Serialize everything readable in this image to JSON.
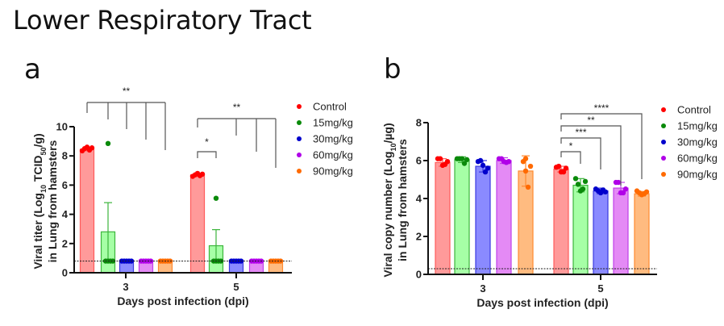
{
  "title": "Lower Respiratory Tract",
  "colors": {
    "Control": {
      "dot": "#ff0000",
      "fill": "#ff9a9a",
      "stroke": "#ff5a5a"
    },
    "15mg/kg": {
      "dot": "#0a8a0a",
      "fill": "#a6ffa6",
      "stroke": "#3cb53c"
    },
    "30mg/kg": {
      "dot": "#0000cc",
      "fill": "#8a8aff",
      "stroke": "#3a3ae0"
    },
    "60mg/kg": {
      "dot": "#b000e8",
      "fill": "#e48af5",
      "stroke": "#c040e8"
    },
    "90mg/kg": {
      "dot": "#ff6a00",
      "fill": "#ffbb80",
      "stroke": "#ff8a30"
    }
  },
  "chart_data": [
    {
      "panel": "a",
      "type": "bar",
      "title": "",
      "xlabel": "Days post infection (dpi)",
      "ylabel_line1": "Viral titer (Log",
      "ylabel_sub": "10",
      "ylabel_mid": " TCID",
      "ylabel_sub2": "50",
      "ylabel_end": "/g)",
      "ylabel_line2": "in Lung from hamsters",
      "ylim": [
        0,
        10
      ],
      "yticks": [
        "0",
        "2",
        "4",
        "6",
        "8",
        "10"
      ],
      "ytick_values": [
        0,
        2,
        4,
        6,
        8,
        10
      ],
      "categories": [
        "3",
        "5"
      ],
      "detection_limit": 0.8,
      "legend": [
        "Control",
        "15mg/kg",
        "30mg/kg",
        "60mg/kg",
        "90mg/kg"
      ],
      "legend_position": "right",
      "series": [
        {
          "name": "Control",
          "values": [
            8.45,
            6.7
          ],
          "err": [
            0.1,
            0.1
          ],
          "points": [
            [
              8.35,
              8.5,
              8.6,
              8.4,
              8.55
            ],
            [
              6.6,
              6.7,
              6.8,
              6.65,
              6.75
            ]
          ]
        },
        {
          "name": "15mg/kg",
          "values": [
            2.8,
            1.85
          ],
          "err": [
            2.0,
            1.1
          ],
          "points": [
            [
              8.85,
              0.8,
              0.8,
              0.8,
              0.8
            ],
            [
              5.1,
              0.8,
              0.8,
              0.8,
              0.8
            ]
          ]
        },
        {
          "name": "30mg/kg",
          "values": [
            0.8,
            0.8
          ],
          "err": [
            0,
            0
          ],
          "points": [
            [
              0.8,
              0.8,
              0.8,
              0.8,
              0.8
            ],
            [
              0.8,
              0.8,
              0.8,
              0.8,
              0.8
            ]
          ]
        },
        {
          "name": "60mg/kg",
          "values": [
            0.8,
            0.8
          ],
          "err": [
            0,
            0
          ],
          "points": [
            [
              0.8,
              0.8,
              0.8,
              0.8,
              0.8
            ],
            [
              0.8,
              0.8,
              0.8,
              0.8,
              0.8
            ]
          ]
        },
        {
          "name": "90mg/kg",
          "values": [
            0.8,
            0.8
          ],
          "err": [
            0,
            0
          ],
          "points": [
            [
              0.8,
              0.8,
              0.8,
              0.8,
              0.8
            ],
            [
              0.8,
              0.8,
              0.8,
              0.8,
              0.8
            ]
          ]
        }
      ],
      "annotations": [
        {
          "day_index": 0,
          "type": "comb",
          "label": "**",
          "from": 0,
          "to": [
            1,
            2,
            3,
            4
          ]
        },
        {
          "day_index": 1,
          "type": "comb",
          "label": "**",
          "from": 0,
          "to": [
            2,
            3,
            4
          ]
        },
        {
          "day_index": 1,
          "type": "pair",
          "label": "*",
          "from": 0,
          "to": [
            1
          ]
        }
      ]
    },
    {
      "panel": "b",
      "type": "bar",
      "title": "",
      "xlabel": "Days post infection (dpi)",
      "ylabel_line1": "Viral copy number (Log",
      "ylabel_sub": "10",
      "ylabel_end": "/µg)",
      "ylabel_line2": "in Lung from hamsters",
      "ylim": [
        0,
        8
      ],
      "yticks": [
        "0",
        "2",
        "4",
        "6",
        "8"
      ],
      "ytick_values": [
        0,
        2,
        4,
        6,
        8
      ],
      "categories": [
        "3",
        "5"
      ],
      "detection_limit": 0.3,
      "legend": [
        "Control",
        "15mg/kg",
        "30mg/kg",
        "60mg/kg",
        "90mg/kg"
      ],
      "legend_position": "right",
      "series": [
        {
          "name": "Control",
          "values": [
            5.9,
            5.55
          ],
          "err": [
            0.2,
            0.15
          ],
          "points": [
            [
              6.1,
              6.1,
              5.75,
              5.8,
              5.95
            ],
            [
              5.65,
              5.7,
              5.4,
              5.4,
              5.6
            ]
          ]
        },
        {
          "name": "15mg/kg",
          "values": [
            6.05,
            4.7
          ],
          "err": [
            0.15,
            0.35
          ],
          "points": [
            [
              6.1,
              6.1,
              6.1,
              5.85,
              6.05
            ],
            [
              5.05,
              4.75,
              4.4,
              4.5,
              4.9
            ]
          ]
        },
        {
          "name": "30mg/kg",
          "values": [
            5.7,
            4.4
          ],
          "err": [
            0.3,
            0.15
          ],
          "points": [
            [
              5.95,
              6.0,
              5.75,
              5.4,
              5.6
            ],
            [
              4.5,
              4.4,
              4.3,
              4.45,
              4.35
            ]
          ]
        },
        {
          "name": "60mg/kg",
          "values": [
            6.0,
            4.55
          ],
          "err": [
            0.15,
            0.3
          ],
          "points": [
            [
              6.1,
              6.1,
              5.95,
              5.9,
              5.95
            ],
            [
              4.85,
              4.85,
              4.3,
              4.3,
              4.5
            ]
          ]
        },
        {
          "name": "90mg/kg",
          "values": [
            5.45,
            4.25
          ],
          "err": [
            0.8,
            0.12
          ],
          "points": [
            [
              6.1,
              5.95,
              5.45,
              4.6,
              5.7
            ],
            [
              4.4,
              4.3,
              4.2,
              4.25,
              4.35
            ]
          ]
        }
      ],
      "annotations": [
        {
          "day_index": 1,
          "type": "step",
          "label": "*",
          "from": 0,
          "to": [
            1
          ]
        },
        {
          "day_index": 1,
          "type": "step",
          "label": "***",
          "from": 0,
          "to": [
            2
          ]
        },
        {
          "day_index": 1,
          "type": "step",
          "label": "**",
          "from": 0,
          "to": [
            3
          ]
        },
        {
          "day_index": 1,
          "type": "step",
          "label": "****",
          "from": 0,
          "to": [
            4
          ]
        }
      ]
    }
  ]
}
